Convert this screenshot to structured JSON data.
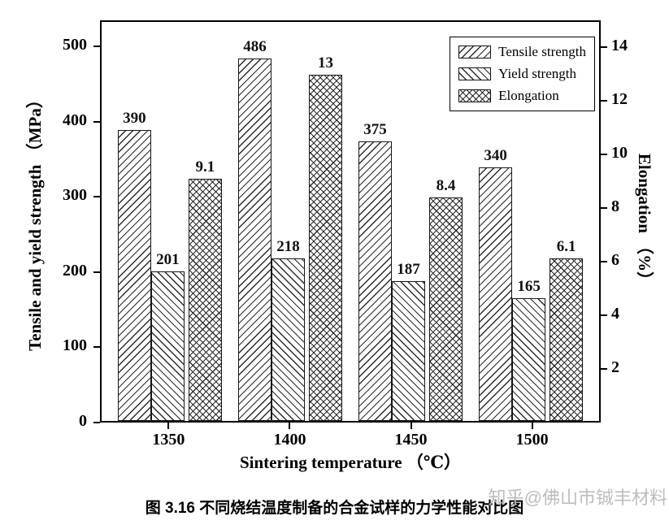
{
  "chart_data": {
    "type": "bar",
    "title": "",
    "categories": [
      "1350",
      "1400",
      "1450",
      "1500"
    ],
    "series": [
      {
        "name": "Tensile strength",
        "axis": "left",
        "hatch": "forward-diagonal",
        "values": [
          390,
          486,
          375,
          340
        ]
      },
      {
        "name": "Yield strength",
        "axis": "left",
        "hatch": "backward-diagonal",
        "values": [
          201,
          218,
          187,
          165
        ]
      },
      {
        "name": "Elongation",
        "axis": "right",
        "hatch": "crosshatch",
        "values": [
          9.1,
          13,
          8.4,
          6.1
        ]
      }
    ],
    "left_axis": {
      "label": "Tensile and yield strength （MPa）",
      "ticks": [
        0,
        100,
        200,
        300,
        400,
        500
      ],
      "max": 535
    },
    "right_axis": {
      "label": "Elongation （%）",
      "ticks": [
        2,
        4,
        6,
        8,
        10,
        12,
        14
      ],
      "max": 15
    },
    "x_axis": {
      "label": "Sintering temperature （℃）"
    },
    "legend_position": "top-right",
    "grid": false
  },
  "caption": "图 3.16  不同烧结温度制备的合金试样的力学性能对比图",
  "watermark": "知乎@佛山市铖丰材料",
  "colors": {
    "axis": "#000000",
    "hatch_line": "#2a2a2a",
    "watermark": "#bdbdbd"
  }
}
